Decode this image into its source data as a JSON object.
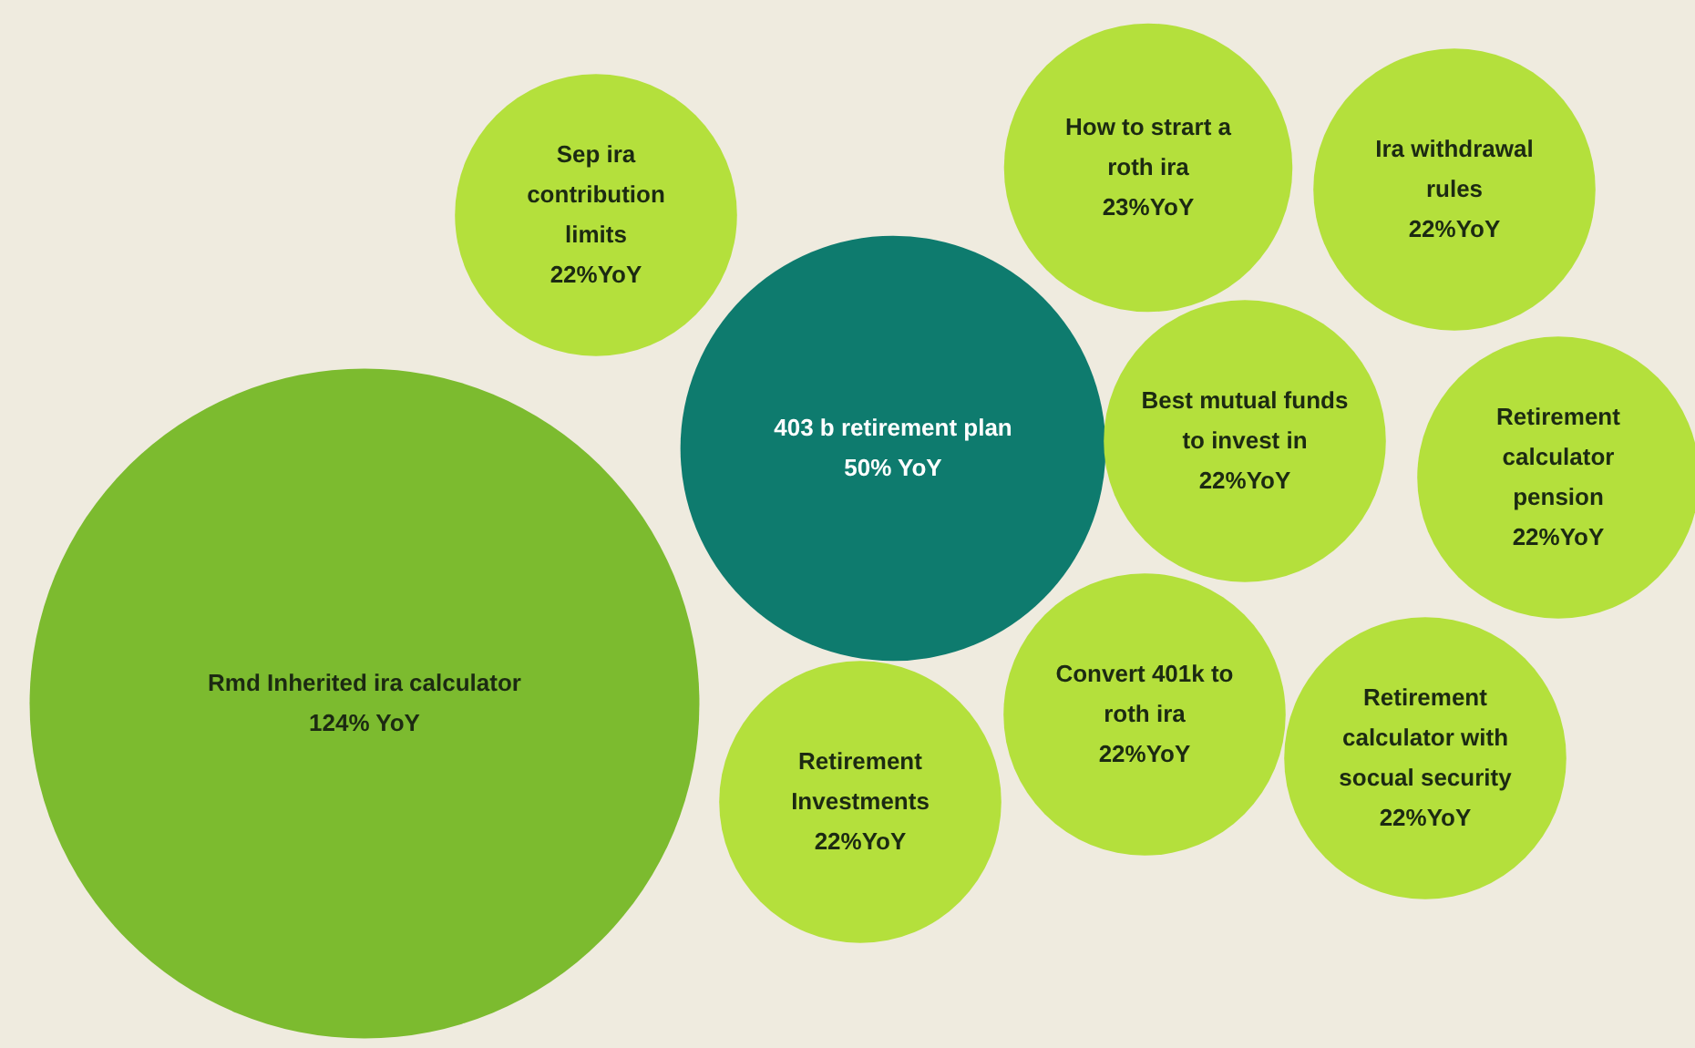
{
  "chart_data": {
    "type": "other",
    "categories": [
      "Sep ira contribution limits",
      "How to strart a roth ira",
      "Ira withdrawal rules",
      "403 b retirement plan",
      "Best mutual funds to invest in",
      "Retirement calculator pension",
      "Rmd Inherited ira calculator",
      "Convert 401k to roth ira",
      "Retirement calculator with socual security",
      "Retirement Investments"
    ],
    "values": [
      22,
      23,
      22,
      50,
      22,
      22,
      124,
      22,
      22,
      22
    ],
    "value_labels": [
      "22%YoY",
      "23%YoY",
      "22%YoY",
      "50% YoY",
      "22%YoY",
      "22%YoY",
      "124% YoY",
      "22%YoY",
      "22%YoY",
      "22%YoY"
    ],
    "colors": [
      "#b4e03c",
      "#b4e03c",
      "#b4e03c",
      "#0e7b6e",
      "#b4e03c",
      "#b4e03c",
      "#7cbb2f",
      "#b4e03c",
      "#b4e03c",
      "#b4e03c"
    ]
  }
}
